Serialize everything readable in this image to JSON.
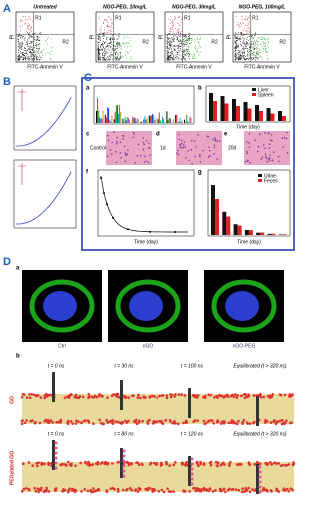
{
  "panel_a": {
    "label": "A",
    "plots": [
      {
        "title": "Untreated"
      },
      {
        "title": "NGO-PEG, 10mg/L"
      },
      {
        "title": "NGO-PEG, 30mg/L"
      },
      {
        "title": "NGO-PEG, 100mg/L"
      }
    ],
    "x_label": "FITC-Annexin V",
    "y_label": "PI",
    "regions": [
      "R1",
      "R2"
    ]
  },
  "panel_b": {
    "label": "B"
  },
  "panel_c": {
    "label": "C",
    "subpanels": [
      "a",
      "b",
      "c",
      "d",
      "e",
      "f",
      "g"
    ],
    "legend_organs": [
      "Liver",
      "Spleen"
    ],
    "legend_excretion": [
      "Urine",
      "Feces"
    ],
    "histology": [
      "Control",
      "1d",
      "20d"
    ],
    "x_label": "Time (day)"
  },
  "panel_d": {
    "label": "D",
    "row_a": "a",
    "row_b": "b",
    "cells": [
      "Ctrl",
      "nGO",
      "nGO-PEG"
    ],
    "rows": [
      {
        "name": "GO",
        "times": [
          "t = 0 ns",
          "t = 30 ns",
          "t = 100 ns",
          "Equilibrated (t > 320 ns)"
        ]
      },
      {
        "name": "PEGylated GO",
        "times": [
          "t = 0 ns",
          "t = 80 ns",
          "t = 120 ns",
          "Equilibrated (t > 320 ns)"
        ]
      }
    ]
  }
}
